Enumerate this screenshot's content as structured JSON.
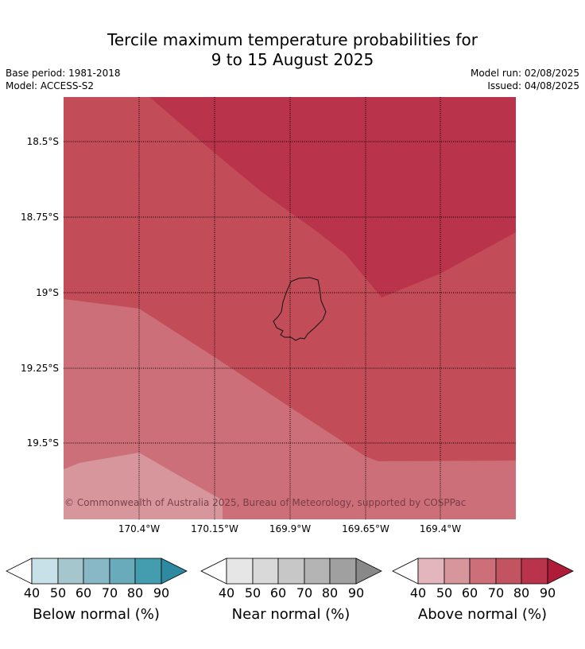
{
  "title_line1": "Tercile maximum temperature probabilities for",
  "title_line2": "9 to 15 August 2025",
  "base_period": "Base period: 1981-2018",
  "model": "Model: ACCESS-S2",
  "model_run": "Model run: 02/08/2025",
  "issued": "Issued: 04/08/2025",
  "copyright": "© Commonwealth of Australia 2025, Bureau of Meteorology, supported by COSPPac",
  "lat_ticks": [
    "18.5°S",
    "18.75°S",
    "19°S",
    "19.25°S",
    "19.5°S"
  ],
  "lon_ticks": [
    "170.4°W",
    "170.15°W",
    "169.9°W",
    "169.65°W",
    "169.4°W"
  ],
  "colorbars": [
    {
      "label": "Below normal (%)",
      "ticks": [
        "40",
        "50",
        "60",
        "70",
        "80",
        "90"
      ],
      "colors": [
        "#ffffff",
        "#c8e0e7",
        "#a5c6cc",
        "#88b8c6",
        "#6aabbb",
        "#449daf",
        "#2e8aa0"
      ]
    },
    {
      "label": "Near normal (%)",
      "ticks": [
        "40",
        "50",
        "60",
        "70",
        "80",
        "90"
      ],
      "colors": [
        "#ffffff",
        "#e6e6e6",
        "#d9d9d9",
        "#c7c7c7",
        "#b4b4b4",
        "#a0a0a0",
        "#888888"
      ]
    },
    {
      "label": "Above normal (%)",
      "ticks": [
        "40",
        "50",
        "60",
        "70",
        "80",
        "90"
      ],
      "colors": [
        "#ffffff",
        "#e2b6bc",
        "#d7959c",
        "#cc6f78",
        "#c25462",
        "#b9344b",
        "#ae1c3a"
      ]
    }
  ],
  "region_colors": {
    "above_50_60": "#d7959c",
    "above_60_70": "#cc6f78",
    "above_70_80": "#c24d59",
    "above_80_90": "#b9344b"
  },
  "map_features": [
    "Niue island coastline outline",
    "dotted lat/lon graticule"
  ]
}
